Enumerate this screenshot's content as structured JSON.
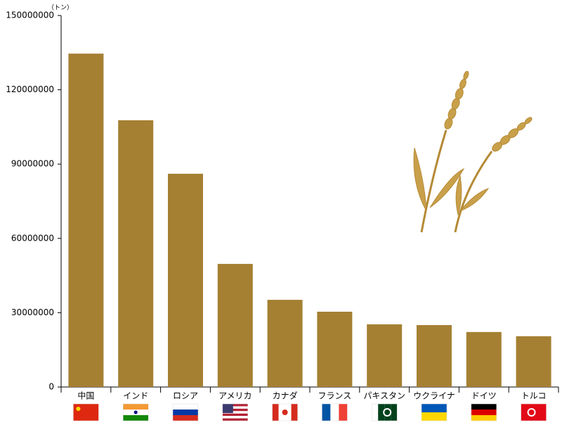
{
  "chart_data": {
    "type": "bar",
    "unit_label": "（トン）",
    "categories": [
      "中国",
      "インド",
      "ロシア",
      "アメリカ",
      "カナダ",
      "フランス",
      "パキスタン",
      "ウクライナ",
      "ドイツ",
      "トルコ"
    ],
    "values": [
      134600000,
      107700000,
      86100000,
      49700000,
      35200000,
      30400000,
      25300000,
      25000000,
      22200000,
      20500000
    ],
    "color": "#a58033",
    "ylim": [
      0,
      150000000
    ],
    "yticks": [
      0,
      30000000,
      60000000,
      90000000,
      120000000,
      150000000
    ],
    "grid": false
  }
}
